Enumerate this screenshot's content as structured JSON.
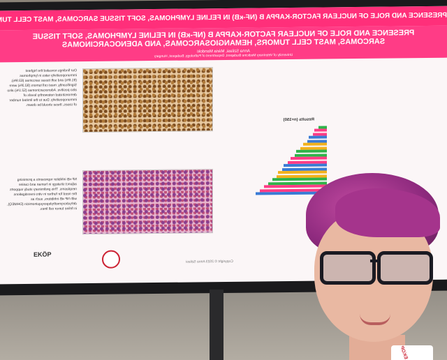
{
  "poster": {
    "top_strip": "PRESENCE AND ROLE OF NUCLEAR FACTOR-KAPPA B (NF-κB) IN FELINE LYMPHOMAS, SOFT TISSUE SARCOMAS, MAST CELL TUMORS, HEMANGIOSARCOMAS",
    "title": "PRESENCE AND ROLE OF NUCLEAR FACTOR-KAPPA B (NF-κB) IN FELINE LYMPHOMAS, SOFT TISSUE SARCOMAS, MAST CELL TUMORS, HEMANGIOSARCOMAS, AND ADENOCARCINOMAS",
    "authors": "Anna Szilasi, Mária Mandoki",
    "affiliation": "University of Veterinary Medicine Budapest, Department of Pathology, Budapest, Hungary",
    "results_heading": "Results (n=150)",
    "logo_text": "EKÖP",
    "footer": "Copyright © 2023 Anna Szilasi",
    "col_left_text": "Our findings revealed the highest immunopositivity rates in lymphomas (91.6%) and soft tissue sarcomas (63.9%). Significantly, mast cell tumors (92.3%) were also positive. Adenocarcinomas (52.1%) also demonstrated noteworthy levels of immunopositivity. Due to the limited number of cases, these should be drawn.",
    "col_left_conclusion": "NF-κB inhibitor represents a promising adjunct strategy in human and canine neoplasms. This preliminary study supports the need for further in vitro investigations with NF-κB inhibitors, such as dehydroxymethylepoxyquinomicin (DHMEQ), in feline tumor cell lines."
  },
  "bar_chart": {
    "colors": [
      "#2fb34a",
      "#ff3c86",
      "#3a7bd5",
      "#f2b11c"
    ]
  },
  "badge": {
    "text": "EKOP"
  }
}
